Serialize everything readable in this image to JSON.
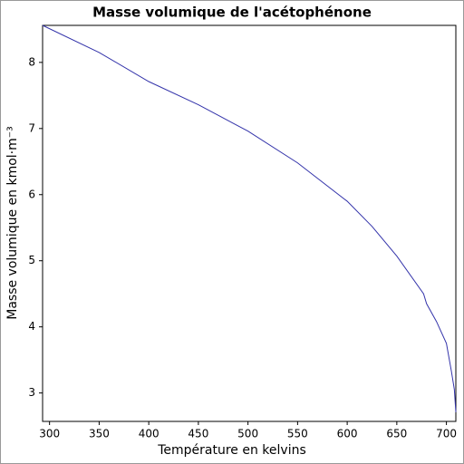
{
  "chart_data": {
    "type": "line",
    "title": "Masse volumique de l'acétophénone",
    "x_label": "Température en kelvins",
    "y_label": "Masse volumique en kmol·m⁻³",
    "x": [
      293,
      350,
      400,
      450,
      500,
      550,
      600,
      625,
      650,
      677,
      680,
      690,
      700,
      705,
      708,
      709.5
    ],
    "series": [
      {
        "name": "Acétophénone",
        "color": "#3333aa",
        "values": [
          8.56,
          8.15,
          7.71,
          7.36,
          6.96,
          6.48,
          5.9,
          5.52,
          5.07,
          4.5,
          4.35,
          4.08,
          3.75,
          3.33,
          3.05,
          2.71
        ]
      }
    ],
    "xlim": [
      293,
      709.5
    ],
    "ylim": [
      2.57,
      8.56
    ],
    "xticks": [
      300,
      350,
      400,
      450,
      500,
      550,
      600,
      650,
      700
    ],
    "yticks": [
      3,
      4,
      5,
      6,
      7,
      8
    ],
    "grid": false
  }
}
